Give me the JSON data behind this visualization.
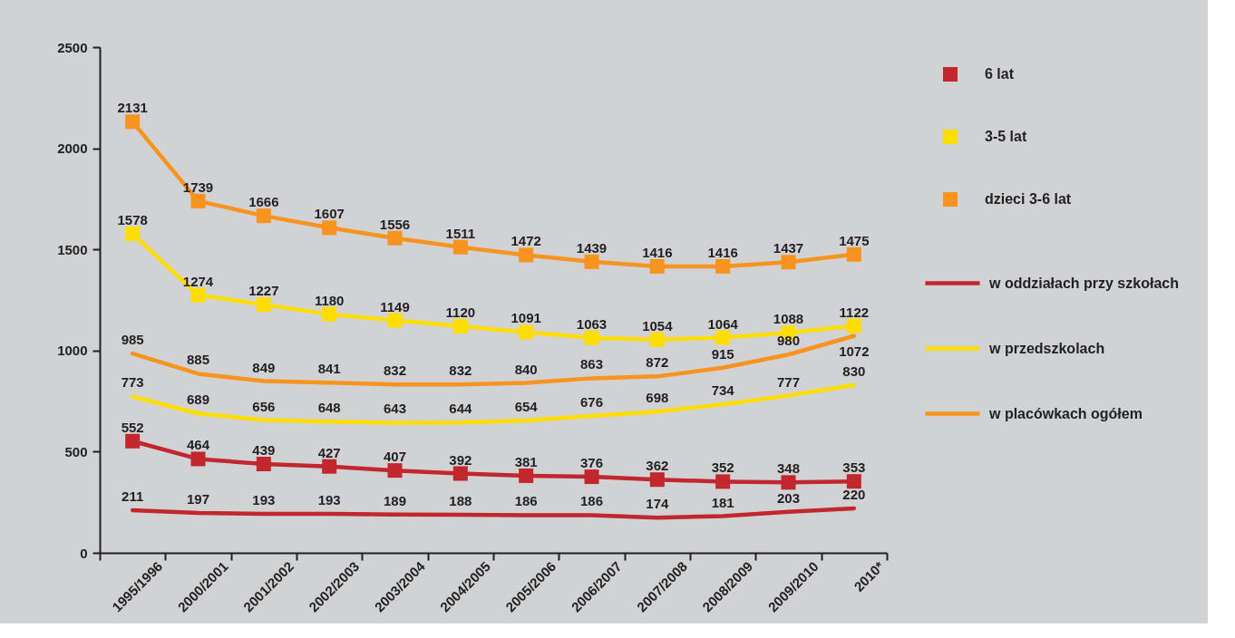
{
  "chart_data": {
    "type": "line",
    "categories": [
      "1995/1996",
      "2000/2001",
      "2001/2002",
      "2002/2003",
      "2003/2004",
      "2004/2005",
      "2005/2006",
      "2006/2007",
      "2007/2008",
      "2008/2009",
      "2009/2010",
      "2010*"
    ],
    "series": [
      {
        "name": "6 lat",
        "color": "#c1272d",
        "marker": "square",
        "values": [
          552,
          464,
          439,
          427,
          407,
          392,
          381,
          376,
          362,
          352,
          348,
          353
        ]
      },
      {
        "name": "3-5 lat",
        "color": "#ffdd00",
        "marker": "square",
        "values": [
          1578,
          1274,
          1227,
          1180,
          1149,
          1120,
          1091,
          1063,
          1054,
          1064,
          1088,
          1122
        ]
      },
      {
        "name": "dzieci 3-6 lat",
        "color": "#f7931e",
        "marker": "square",
        "values": [
          2131,
          1739,
          1666,
          1607,
          1556,
          1511,
          1472,
          1439,
          1416,
          1416,
          1437,
          1475
        ]
      },
      {
        "name": "w oddziałach przy szkołach",
        "color": "#c1272d",
        "marker": "none",
        "values": [
          211,
          197,
          193,
          193,
          189,
          188,
          186,
          186,
          174,
          181,
          203,
          220
        ]
      },
      {
        "name": "w przedszkolach",
        "color": "#ffdd00",
        "marker": "none",
        "values": [
          773,
          689,
          656,
          648,
          643,
          644,
          654,
          676,
          698,
          734,
          777,
          830
        ]
      },
      {
        "name": "w placówkach ogółem",
        "color": "#f7931e",
        "marker": "none",
        "values": [
          985,
          885,
          849,
          841,
          832,
          832,
          840,
          863,
          872,
          915,
          980,
          1072
        ]
      }
    ],
    "ylim": [
      0,
      2500
    ],
    "yticks": [
      0,
      500,
      1000,
      1500,
      2000,
      2500
    ],
    "data_labels": true,
    "legend": "right",
    "grid": false,
    "line_style": "solid"
  }
}
